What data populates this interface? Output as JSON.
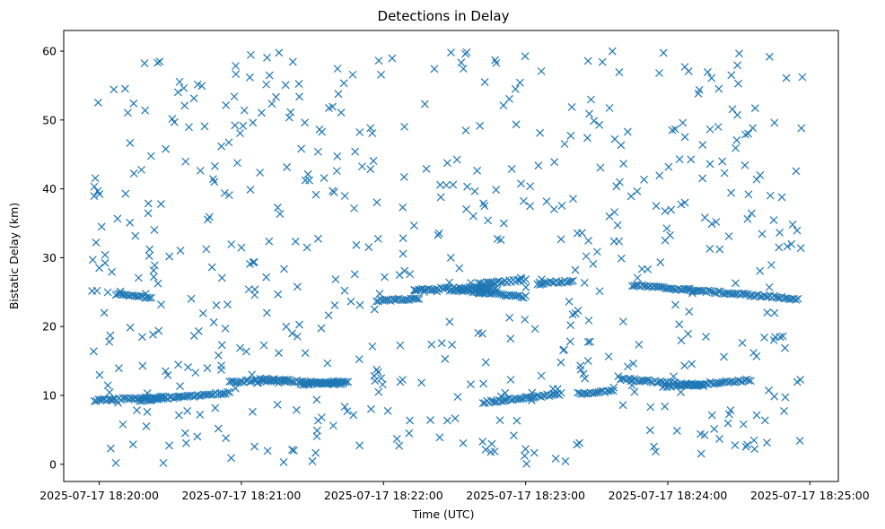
{
  "chart_data": {
    "type": "scatter",
    "title": "Detections in Delay",
    "xlabel": "Time (UTC)",
    "ylabel": "Bistatic Delay (km)",
    "x_unit": "time",
    "xlim": [
      "2025-07-17 18:19:45",
      "2025-07-17 18:25:12"
    ],
    "ylim": [
      -2.5,
      63
    ],
    "x_ticks": [
      "2025-07-17 18:20:00",
      "2025-07-17 18:21:00",
      "2025-07-17 18:22:00",
      "2025-07-17 18:23:00",
      "2025-07-17 18:24:00",
      "2025-07-17 18:25:00"
    ],
    "y_ticks": [
      0,
      10,
      20,
      30,
      40,
      50,
      60
    ],
    "marker": "x",
    "color": "#1f77b4",
    "grid": false,
    "time_range": [
      "2025-07-17 18:19:57",
      "2025-07-17 18:24:57"
    ],
    "tracks": [
      {
        "points": [
          [
            "2025-07-17 18:19:57",
            25.0
          ],
          [
            "2025-07-17 18:19:59",
            25.2
          ]
        ]
      },
      {
        "points": [
          [
            "2025-07-17 18:20:07",
            24.7
          ],
          [
            "2025-07-17 18:20:22",
            24.2
          ]
        ]
      },
      {
        "points": [
          [
            "2025-07-17 18:19:58",
            9.3
          ],
          [
            "2025-07-17 18:20:27",
            9.7
          ]
        ]
      },
      {
        "points": [
          [
            "2025-07-17 18:20:17",
            9.3
          ],
          [
            "2025-07-17 18:20:55",
            10.4
          ]
        ]
      },
      {
        "points": [
          [
            "2025-07-17 18:20:55",
            12.0
          ],
          [
            "2025-07-17 18:21:20",
            12.2
          ]
        ]
      },
      {
        "points": [
          [
            "2025-07-17 18:21:08",
            12.4
          ],
          [
            "2025-07-17 18:21:43",
            11.6
          ]
        ]
      },
      {
        "points": [
          [
            "2025-07-17 18:21:25",
            11.6
          ],
          [
            "2025-07-17 18:21:45",
            12.1
          ]
        ]
      },
      {
        "points": [
          [
            "2025-07-17 18:21:57",
            23.8
          ],
          [
            "2025-07-17 18:22:15",
            24.1
          ]
        ]
      },
      {
        "points": [
          [
            "2025-07-17 18:22:13",
            25.3
          ],
          [
            "2025-07-17 18:22:45",
            25.8
          ]
        ]
      },
      {
        "points": [
          [
            "2025-07-17 18:22:28",
            25.2
          ],
          [
            "2025-07-17 18:22:48",
            25.4
          ]
        ]
      },
      {
        "points": [
          [
            "2025-07-17 18:22:35",
            25.2
          ],
          [
            "2025-07-17 18:23:00",
            24.3
          ]
        ]
      },
      {
        "points": [
          [
            "2025-07-17 18:22:40",
            26.2
          ],
          [
            "2025-07-17 18:23:00",
            26.8
          ]
        ]
      },
      {
        "points": [
          [
            "2025-07-17 18:23:05",
            26.3
          ],
          [
            "2025-07-17 18:23:20",
            26.6
          ]
        ]
      },
      {
        "points": [
          [
            "2025-07-17 18:22:42",
            9.0
          ],
          [
            "2025-07-17 18:23:15",
            10.2
          ]
        ]
      },
      {
        "points": [
          [
            "2025-07-17 18:23:22",
            10.3
          ],
          [
            "2025-07-17 18:23:37",
            10.6
          ]
        ]
      },
      {
        "points": [
          [
            "2025-07-17 18:23:40",
            12.4
          ],
          [
            "2025-07-17 18:24:15",
            11.4
          ]
        ]
      },
      {
        "points": [
          [
            "2025-07-17 18:23:58",
            11.3
          ],
          [
            "2025-07-17 18:24:35",
            12.2
          ]
        ]
      },
      {
        "points": [
          [
            "2025-07-17 18:23:45",
            26.0
          ],
          [
            "2025-07-17 18:24:55",
            24.0
          ]
        ]
      }
    ],
    "scatter_count": 600,
    "scatter_range": [
      0,
      60
    ]
  }
}
